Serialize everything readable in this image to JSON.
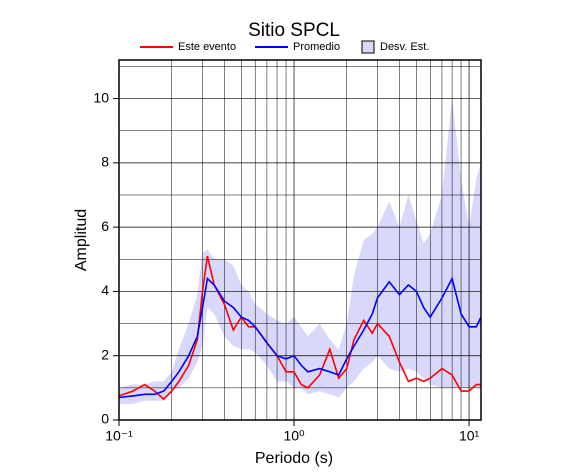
{
  "chart_data": {
    "type": "line",
    "title": "Sitio SPCL",
    "x_label": "Periodo (s)",
    "y_label": "Amplitud",
    "log_x": true,
    "grid": true,
    "legend": "top",
    "xlim": [
      0.1,
      11.7
    ],
    "ylim": [
      0,
      11.2
    ],
    "xticks": [
      {
        "value": 0.1,
        "label": "10⁻¹"
      },
      {
        "value": 1,
        "label": "10⁰"
      },
      {
        "value": 10,
        "label": "10¹"
      }
    ],
    "xminor_ticks": [
      0.2,
      0.3,
      0.4,
      0.5,
      0.6,
      0.7,
      0.8,
      0.9,
      2,
      3,
      4,
      5,
      6,
      7,
      8,
      9
    ],
    "yticks": [
      0,
      2,
      4,
      6,
      8,
      10
    ],
    "yminor_ticks": [
      1,
      3,
      5,
      7,
      9,
      11
    ],
    "x": [
      0.1,
      0.12,
      0.14,
      0.16,
      0.18,
      0.2,
      0.22,
      0.25,
      0.28,
      0.3,
      0.32,
      0.35,
      0.4,
      0.45,
      0.5,
      0.55,
      0.6,
      0.7,
      0.8,
      0.9,
      1.0,
      1.1,
      1.2,
      1.4,
      1.6,
      1.8,
      2.0,
      2.2,
      2.5,
      2.8,
      3.0,
      3.5,
      4.0,
      4.5,
      5.0,
      5.5,
      6.0,
      7.0,
      8.0,
      9.0,
      10,
      11,
      11.7
    ],
    "band": {
      "name": "Desv. Est.",
      "color": "#d8d8fa",
      "upper": [
        1.0,
        1.1,
        1.1,
        1.2,
        1.2,
        1.5,
        2.2,
        3.0,
        3.9,
        5.2,
        5.3,
        5.0,
        5.0,
        4.8,
        4.2,
        4.0,
        3.6,
        3.3,
        3.1,
        3.0,
        3.2,
        2.9,
        2.6,
        3.0,
        2.5,
        2.2,
        3.0,
        4.5,
        5.6,
        5.8,
        6.0,
        6.8,
        6.0,
        7.0,
        6.2,
        5.5,
        5.8,
        7.0,
        10.0,
        7.5,
        6.0,
        7.5,
        8.0
      ],
      "lower": [
        0.5,
        0.5,
        0.6,
        0.6,
        0.6,
        0.9,
        1.0,
        1.3,
        1.8,
        2.3,
        3.5,
        3.3,
        2.6,
        2.3,
        2.2,
        2.2,
        2.1,
        1.7,
        1.2,
        1.2,
        1.0,
        1.0,
        0.8,
        0.9,
        0.8,
        0.7,
        1.0,
        1.2,
        1.6,
        1.8,
        2.0,
        1.6,
        1.5,
        1.6,
        1.5,
        1.3,
        1.1,
        1.0,
        1.0,
        1.0,
        1.0,
        1.0,
        1.0
      ]
    },
    "series": [
      {
        "name": "Este evento",
        "color": "#ff0000",
        "values": [
          0.75,
          0.9,
          1.1,
          0.9,
          0.65,
          0.9,
          1.2,
          1.7,
          2.5,
          4.0,
          5.1,
          4.2,
          3.6,
          2.8,
          3.2,
          2.9,
          2.9,
          2.4,
          2.0,
          1.5,
          1.5,
          1.1,
          1.0,
          1.4,
          2.2,
          1.3,
          1.6,
          2.5,
          3.1,
          2.7,
          3.0,
          2.6,
          1.8,
          1.2,
          1.3,
          1.2,
          1.3,
          1.6,
          1.4,
          0.9,
          0.9,
          1.1,
          1.1
        ]
      },
      {
        "name": "Promedio",
        "color": "#0000ff",
        "values": [
          0.7,
          0.75,
          0.8,
          0.8,
          0.9,
          1.2,
          1.5,
          2.0,
          2.6,
          3.5,
          4.4,
          4.2,
          3.7,
          3.5,
          3.2,
          3.1,
          2.9,
          2.4,
          2.0,
          1.9,
          2.0,
          1.7,
          1.5,
          1.6,
          1.5,
          1.4,
          1.9,
          2.3,
          2.8,
          3.3,
          3.8,
          4.3,
          3.9,
          4.2,
          4.0,
          3.5,
          3.2,
          3.8,
          4.4,
          3.3,
          2.9,
          2.9,
          3.2
        ]
      }
    ]
  }
}
